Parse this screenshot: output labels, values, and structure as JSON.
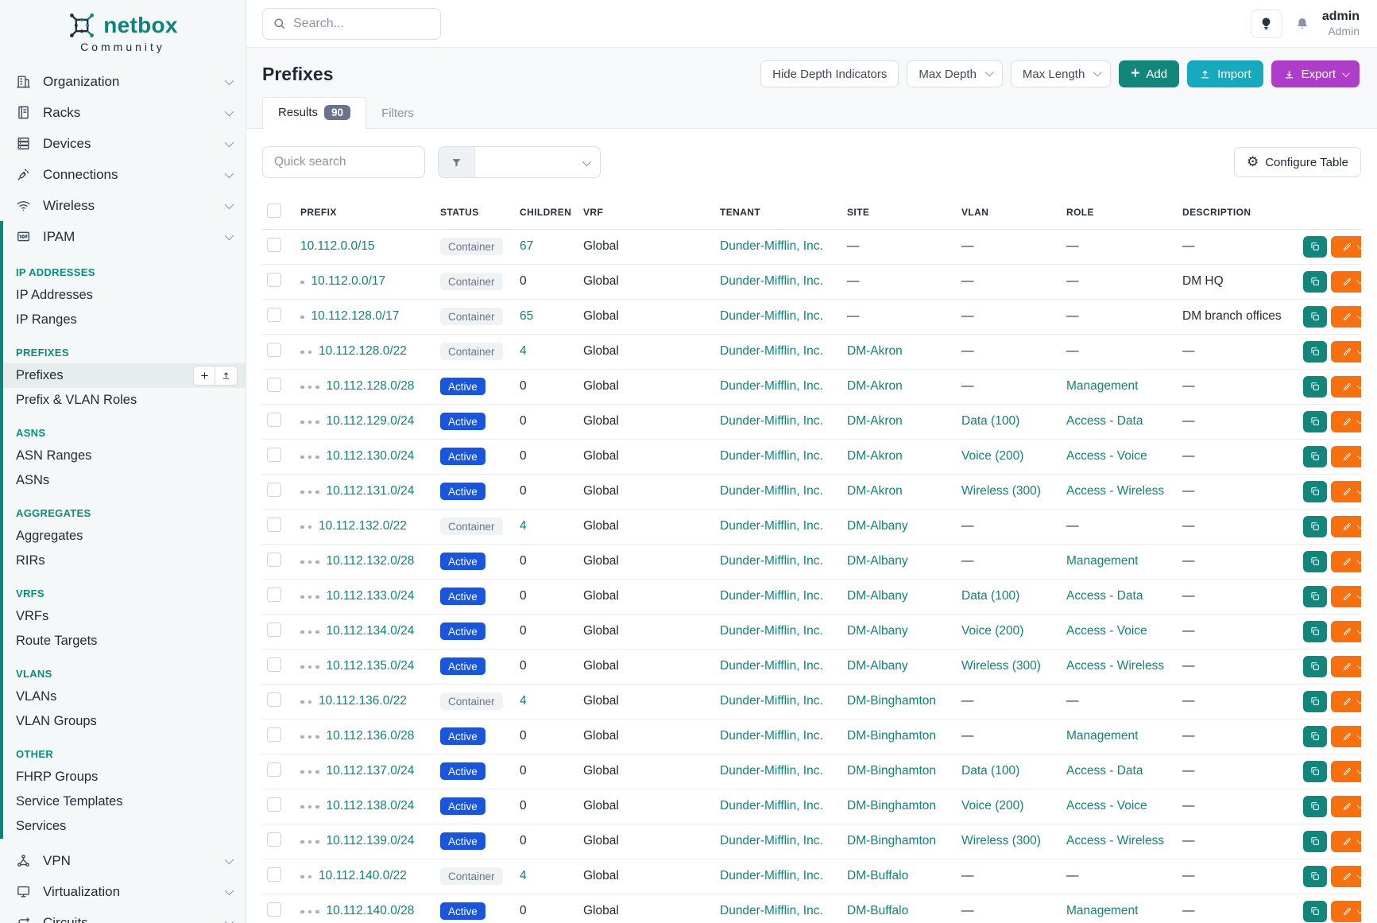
{
  "brand": {
    "name": "netbox",
    "subtitle": "Community"
  },
  "topbar": {
    "search_placeholder": "Search...",
    "user": {
      "name": "admin",
      "role": "Admin"
    }
  },
  "sidebar": {
    "top_items": [
      {
        "label": "Organization",
        "icon": "building-icon"
      },
      {
        "label": "Racks",
        "icon": "rack-icon"
      },
      {
        "label": "Devices",
        "icon": "server-icon"
      },
      {
        "label": "Connections",
        "icon": "plug-icon"
      },
      {
        "label": "Wireless",
        "icon": "wifi-icon"
      }
    ],
    "ipam": {
      "label": "IPAM",
      "icon": "ipam-icon",
      "sections": [
        {
          "heading": "IP ADDRESSES",
          "items": [
            {
              "label": "IP Addresses"
            },
            {
              "label": "IP Ranges"
            }
          ]
        },
        {
          "heading": "PREFIXES",
          "items": [
            {
              "label": "Prefixes",
              "active": true,
              "actions": true
            },
            {
              "label": "Prefix & VLAN Roles"
            }
          ]
        },
        {
          "heading": "ASNS",
          "items": [
            {
              "label": "ASN Ranges"
            },
            {
              "label": "ASNs"
            }
          ]
        },
        {
          "heading": "AGGREGATES",
          "items": [
            {
              "label": "Aggregates"
            },
            {
              "label": "RIRs"
            }
          ]
        },
        {
          "heading": "VRFS",
          "items": [
            {
              "label": "VRFs"
            },
            {
              "label": "Route Targets"
            }
          ]
        },
        {
          "heading": "VLANS",
          "items": [
            {
              "label": "VLANs"
            },
            {
              "label": "VLAN Groups"
            }
          ]
        },
        {
          "heading": "OTHER",
          "items": [
            {
              "label": "FHRP Groups"
            },
            {
              "label": "Service Templates"
            },
            {
              "label": "Services"
            }
          ]
        }
      ]
    },
    "bottom_items": [
      {
        "label": "VPN",
        "icon": "vpn-icon"
      },
      {
        "label": "Virtualization",
        "icon": "monitor-icon"
      },
      {
        "label": "Circuits",
        "icon": "circuits-icon"
      }
    ]
  },
  "page": {
    "title": "Prefixes",
    "toolbar": {
      "hide_depth": "Hide Depth Indicators",
      "max_depth": "Max Depth",
      "max_length": "Max Length",
      "add": "Add",
      "import": "Import",
      "export": "Export"
    },
    "tabs": {
      "results": "Results",
      "count": "90",
      "filters": "Filters"
    },
    "controls": {
      "quick_search_placeholder": "Quick search",
      "configure": "Configure Table"
    }
  },
  "table": {
    "columns": [
      "PREFIX",
      "STATUS",
      "CHILDREN",
      "VRF",
      "TENANT",
      "SITE",
      "VLAN",
      "ROLE",
      "DESCRIPTION"
    ],
    "rows": [
      {
        "depth": 0,
        "prefix": "10.112.0.0/15",
        "status": "Container",
        "children": "67",
        "children_link": true,
        "vrf": "Global",
        "tenant": "Dunder-Mifflin, Inc.",
        "site": "—",
        "vlan": "—",
        "role": "—",
        "description": "—"
      },
      {
        "depth": 1,
        "prefix": "10.112.0.0/17",
        "status": "Container",
        "children": "0",
        "children_link": false,
        "vrf": "Global",
        "tenant": "Dunder-Mifflin, Inc.",
        "site": "—",
        "vlan": "—",
        "role": "—",
        "description": "DM HQ"
      },
      {
        "depth": 1,
        "prefix": "10.112.128.0/17",
        "status": "Container",
        "children": "65",
        "children_link": true,
        "vrf": "Global",
        "tenant": "Dunder-Mifflin, Inc.",
        "site": "—",
        "vlan": "—",
        "role": "—",
        "description": "DM branch offices"
      },
      {
        "depth": 2,
        "prefix": "10.112.128.0/22",
        "status": "Container",
        "children": "4",
        "children_link": true,
        "vrf": "Global",
        "tenant": "Dunder-Mifflin, Inc.",
        "site": "DM-Akron",
        "vlan": "—",
        "role": "—",
        "description": "—"
      },
      {
        "depth": 3,
        "prefix": "10.112.128.0/28",
        "status": "Active",
        "children": "0",
        "children_link": false,
        "vrf": "Global",
        "tenant": "Dunder-Mifflin, Inc.",
        "site": "DM-Akron",
        "vlan": "—",
        "role": "Management",
        "description": "—"
      },
      {
        "depth": 3,
        "prefix": "10.112.129.0/24",
        "status": "Active",
        "children": "0",
        "children_link": false,
        "vrf": "Global",
        "tenant": "Dunder-Mifflin, Inc.",
        "site": "DM-Akron",
        "vlan": "Data (100)",
        "role": "Access - Data",
        "description": "—"
      },
      {
        "depth": 3,
        "prefix": "10.112.130.0/24",
        "status": "Active",
        "children": "0",
        "children_link": false,
        "vrf": "Global",
        "tenant": "Dunder-Mifflin, Inc.",
        "site": "DM-Akron",
        "vlan": "Voice (200)",
        "role": "Access - Voice",
        "description": "—"
      },
      {
        "depth": 3,
        "prefix": "10.112.131.0/24",
        "status": "Active",
        "children": "0",
        "children_link": false,
        "vrf": "Global",
        "tenant": "Dunder-Mifflin, Inc.",
        "site": "DM-Akron",
        "vlan": "Wireless (300)",
        "role": "Access - Wireless",
        "description": "—"
      },
      {
        "depth": 2,
        "prefix": "10.112.132.0/22",
        "status": "Container",
        "children": "4",
        "children_link": true,
        "vrf": "Global",
        "tenant": "Dunder-Mifflin, Inc.",
        "site": "DM-Albany",
        "vlan": "—",
        "role": "—",
        "description": "—"
      },
      {
        "depth": 3,
        "prefix": "10.112.132.0/28",
        "status": "Active",
        "children": "0",
        "children_link": false,
        "vrf": "Global",
        "tenant": "Dunder-Mifflin, Inc.",
        "site": "DM-Albany",
        "vlan": "—",
        "role": "Management",
        "description": "—"
      },
      {
        "depth": 3,
        "prefix": "10.112.133.0/24",
        "status": "Active",
        "children": "0",
        "children_link": false,
        "vrf": "Global",
        "tenant": "Dunder-Mifflin, Inc.",
        "site": "DM-Albany",
        "vlan": "Data (100)",
        "role": "Access - Data",
        "description": "—"
      },
      {
        "depth": 3,
        "prefix": "10.112.134.0/24",
        "status": "Active",
        "children": "0",
        "children_link": false,
        "vrf": "Global",
        "tenant": "Dunder-Mifflin, Inc.",
        "site": "DM-Albany",
        "vlan": "Voice (200)",
        "role": "Access - Voice",
        "description": "—"
      },
      {
        "depth": 3,
        "prefix": "10.112.135.0/24",
        "status": "Active",
        "children": "0",
        "children_link": false,
        "vrf": "Global",
        "tenant": "Dunder-Mifflin, Inc.",
        "site": "DM-Albany",
        "vlan": "Wireless (300)",
        "role": "Access - Wireless",
        "description": "—"
      },
      {
        "depth": 2,
        "prefix": "10.112.136.0/22",
        "status": "Container",
        "children": "4",
        "children_link": true,
        "vrf": "Global",
        "tenant": "Dunder-Mifflin, Inc.",
        "site": "DM-Binghamton",
        "vlan": "—",
        "role": "—",
        "description": "—"
      },
      {
        "depth": 3,
        "prefix": "10.112.136.0/28",
        "status": "Active",
        "children": "0",
        "children_link": false,
        "vrf": "Global",
        "tenant": "Dunder-Mifflin, Inc.",
        "site": "DM-Binghamton",
        "vlan": "—",
        "role": "Management",
        "description": "—"
      },
      {
        "depth": 3,
        "prefix": "10.112.137.0/24",
        "status": "Active",
        "children": "0",
        "children_link": false,
        "vrf": "Global",
        "tenant": "Dunder-Mifflin, Inc.",
        "site": "DM-Binghamton",
        "vlan": "Data (100)",
        "role": "Access - Data",
        "description": "—"
      },
      {
        "depth": 3,
        "prefix": "10.112.138.0/24",
        "status": "Active",
        "children": "0",
        "children_link": false,
        "vrf": "Global",
        "tenant": "Dunder-Mifflin, Inc.",
        "site": "DM-Binghamton",
        "vlan": "Voice (200)",
        "role": "Access - Voice",
        "description": "—"
      },
      {
        "depth": 3,
        "prefix": "10.112.139.0/24",
        "status": "Active",
        "children": "0",
        "children_link": false,
        "vrf": "Global",
        "tenant": "Dunder-Mifflin, Inc.",
        "site": "DM-Binghamton",
        "vlan": "Wireless (300)",
        "role": "Access - Wireless",
        "description": "—"
      },
      {
        "depth": 2,
        "prefix": "10.112.140.0/22",
        "status": "Container",
        "children": "4",
        "children_link": true,
        "vrf": "Global",
        "tenant": "Dunder-Mifflin, Inc.",
        "site": "DM-Buffalo",
        "vlan": "—",
        "role": "—",
        "description": "—"
      },
      {
        "depth": 3,
        "prefix": "10.112.140.0/28",
        "status": "Active",
        "children": "0",
        "children_link": false,
        "vrf": "Global",
        "tenant": "Dunder-Mifflin, Inc.",
        "site": "DM-Buffalo",
        "vlan": "—",
        "role": "Management",
        "description": "—"
      }
    ]
  },
  "colors": {
    "brand_teal": "#0e837c",
    "link_teal": "#0e837c",
    "active_badge_blue": "#1a56db",
    "container_badge_bg": "#f0f3f5",
    "add_button_green": "#12867b",
    "import_button_cyan": "#17a9bd",
    "export_button_purple": "#ae3ec9",
    "edit_button_orange": "#f7700f"
  }
}
